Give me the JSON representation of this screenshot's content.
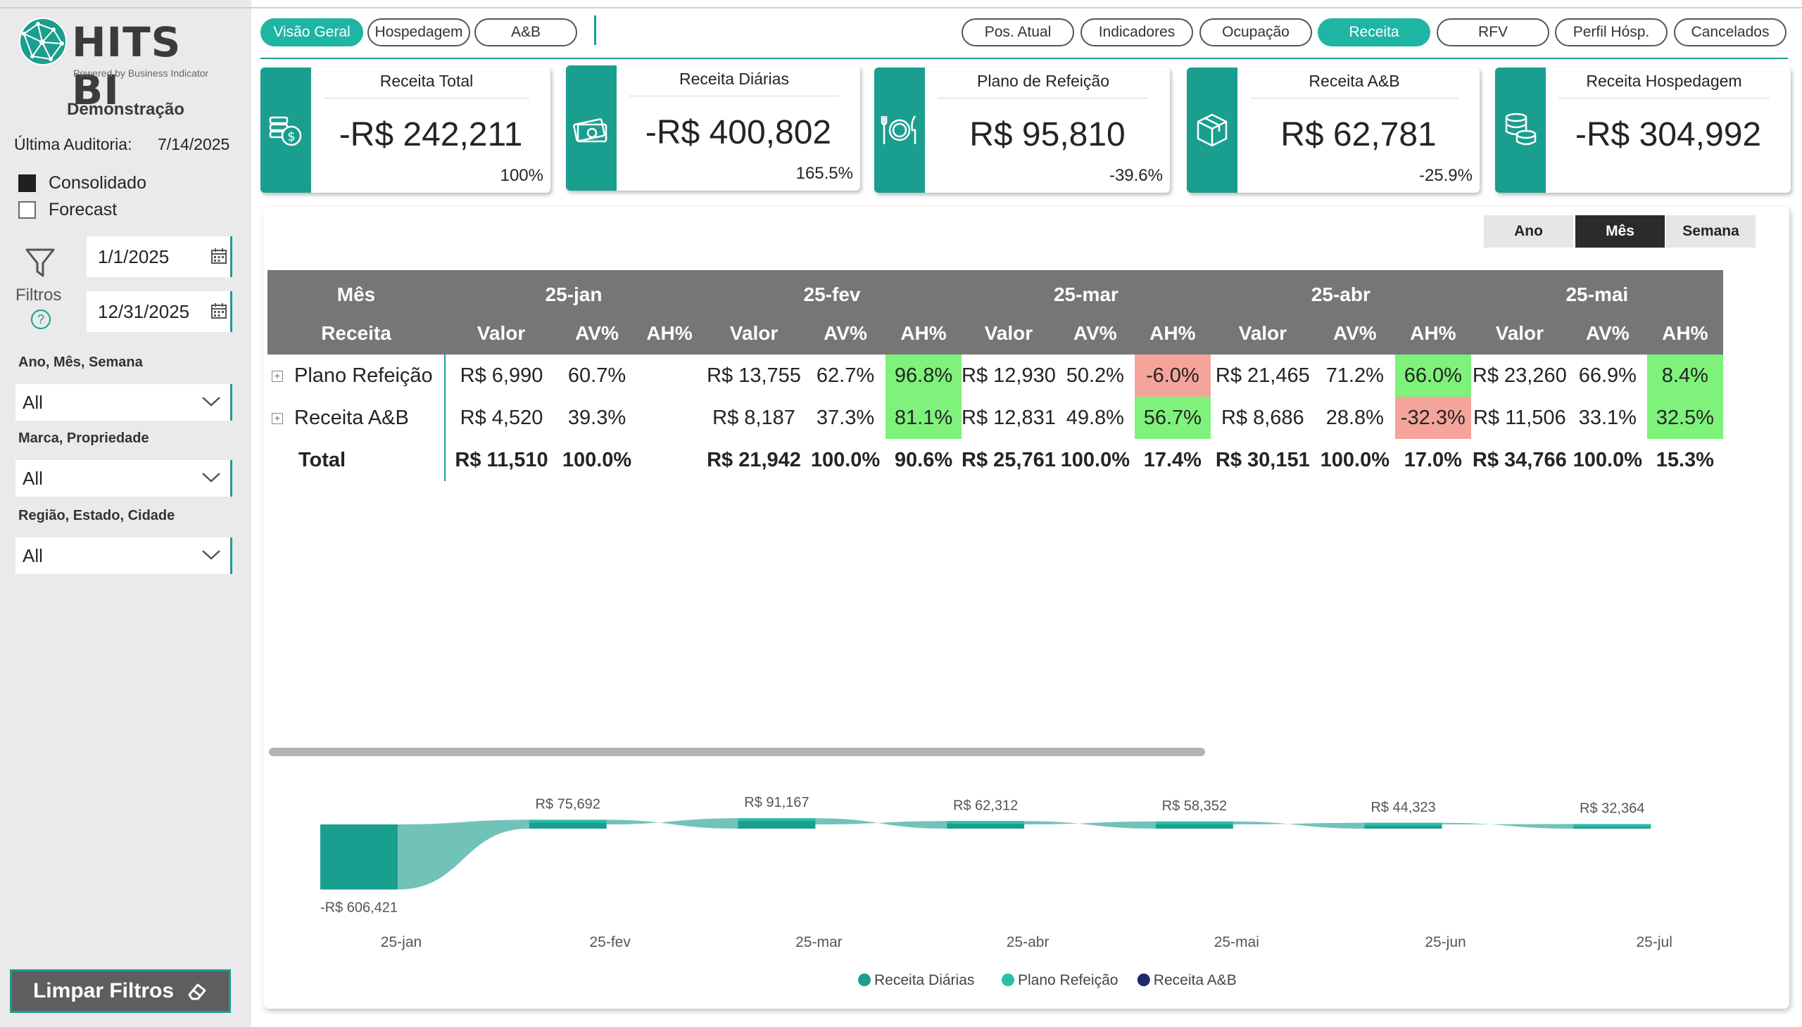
{
  "brand": {
    "logo_text": "HITS BI",
    "tagline": "Powered by Business Indicator",
    "accent": "#1a9e8f",
    "accent_active": "#1fb5a3"
  },
  "sidebar": {
    "company": "Demonstração",
    "audit_label": "Última Auditoria:",
    "audit_date": "7/14/2025",
    "options": [
      {
        "label": "Consolidado",
        "checked": true
      },
      {
        "label": "Forecast",
        "checked": false
      }
    ],
    "filters_label": "Filtros",
    "help_glyph": "?",
    "date_start": "1/1/2025",
    "date_end": "12/31/2025",
    "slicers": [
      {
        "title": "Ano, Mês, Semana",
        "value": "All"
      },
      {
        "title": "Marca, Propriedade",
        "value": "All"
      },
      {
        "title": "Região, Estado, Cidade",
        "value": "All"
      }
    ],
    "clear_button": "Limpar Filtros"
  },
  "nav": {
    "left_tabs": [
      {
        "label": "Visão Geral",
        "active": true
      },
      {
        "label": "Hospedagem",
        "active": false
      },
      {
        "label": "A&B",
        "active": false
      }
    ],
    "right_tabs": [
      {
        "label": "Pos. Atual",
        "active": false
      },
      {
        "label": "Indicadores",
        "active": false
      },
      {
        "label": "Ocupação",
        "active": false
      },
      {
        "label": "Receita",
        "active": true
      },
      {
        "label": "RFV",
        "active": false
      },
      {
        "label": "Perfil Hósp.",
        "active": false
      },
      {
        "label": "Cancelados",
        "active": false
      }
    ]
  },
  "kpis": [
    {
      "title": "Receita Total",
      "value": "-R$ 242,211",
      "pct": "100%",
      "icon": "money-coins-icon"
    },
    {
      "title": "Receita Diárias",
      "value": "-R$ 400,802",
      "pct": "165.5%",
      "icon": "cash-bill-icon"
    },
    {
      "title": "Plano de Refeição",
      "value": "R$ 95,810",
      "pct": "-39.6%",
      "icon": "meal-plate-icon"
    },
    {
      "title": "Receita A&B",
      "value": "R$ 62,781",
      "pct": "-25.9%",
      "icon": "package-box-icon"
    },
    {
      "title": "Receita Hospedagem",
      "value": "-R$ 304,992",
      "pct": "",
      "icon": "coin-stack-icon"
    }
  ],
  "period_buttons": [
    {
      "label": "Ano",
      "active": false
    },
    {
      "label": "Mês",
      "active": true
    },
    {
      "label": "Semana",
      "active": false
    }
  ],
  "matrix": {
    "corner_top": "Mês",
    "corner_bottom": "Receita",
    "months": [
      "25-jan",
      "25-fev",
      "25-mar",
      "25-abr",
      "25-mai"
    ],
    "subheaders": [
      "Valor",
      "AV%",
      "AH%"
    ],
    "rows": [
      {
        "label": "Plano Refeição",
        "expandable": true,
        "cells": [
          [
            "R$ 6,990",
            "60.7%",
            ""
          ],
          [
            "R$ 13,755",
            "62.7%",
            "96.8%"
          ],
          [
            "R$ 12,930",
            "50.2%",
            "-6.0%"
          ],
          [
            "R$ 21,465",
            "71.2%",
            "66.0%"
          ],
          [
            "R$ 23,260",
            "66.9%",
            "8.4%"
          ]
        ]
      },
      {
        "label": "Receita A&B",
        "expandable": true,
        "cells": [
          [
            "R$ 4,520",
            "39.3%",
            ""
          ],
          [
            "R$ 8,187",
            "37.3%",
            "81.1%"
          ],
          [
            "R$ 12,831",
            "49.8%",
            "56.7%"
          ],
          [
            "R$ 8,686",
            "28.8%",
            "-32.3%"
          ],
          [
            "R$ 11,506",
            "33.1%",
            "32.5%"
          ]
        ]
      },
      {
        "label": "Total",
        "expandable": false,
        "cells": [
          [
            "R$ 11,510",
            "100.0%",
            ""
          ],
          [
            "R$ 21,942",
            "100.0%",
            "90.6%"
          ],
          [
            "R$ 25,761",
            "100.0%",
            "17.4%"
          ],
          [
            "R$ 30,151",
            "100.0%",
            "17.0%"
          ],
          [
            "R$ 34,766",
            "100.0%",
            "15.3%"
          ]
        ]
      }
    ],
    "positive_color": "#7ef27b",
    "negative_color": "#f4a49b"
  },
  "chart_data": {
    "type": "area",
    "categories": [
      "25-jan",
      "25-fev",
      "25-mar",
      "25-abr",
      "25-mai",
      "25-jun",
      "25-jul"
    ],
    "totals": [
      -606421,
      75692,
      91167,
      62312,
      58352,
      44323,
      32364
    ],
    "total_labels": [
      "-R$ 606,421",
      "R$ 75,692",
      "R$ 91,167",
      "R$ 62,312",
      "R$ 58,352",
      "R$ 44,323",
      "R$ 32,364"
    ],
    "series": [
      {
        "name": "Receita Diárias",
        "color": "#1a9e8f"
      },
      {
        "name": "Plano Refeição",
        "color": "#2bbfa8"
      },
      {
        "name": "Receita A&B",
        "color": "#1f2a6b"
      }
    ],
    "legend_position": "bottom-center"
  }
}
